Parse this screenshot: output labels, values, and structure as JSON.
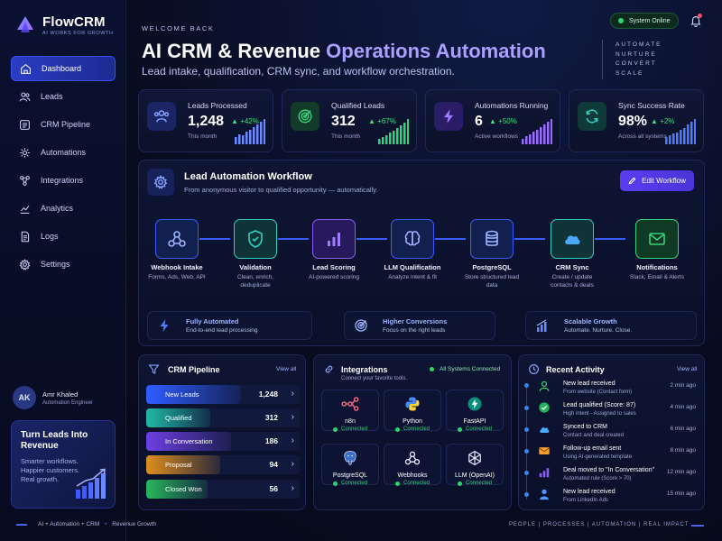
{
  "brand": {
    "name": "FlowCRM",
    "tagline": "AI WORKS FOR GROWTH"
  },
  "nav": [
    {
      "label": "Dashboard",
      "icon": "home-icon",
      "active": true
    },
    {
      "label": "Leads",
      "icon": "users-icon"
    },
    {
      "label": "CRM Pipeline",
      "icon": "list-icon"
    },
    {
      "label": "Automations",
      "icon": "automation-icon"
    },
    {
      "label": "Integrations",
      "icon": "integrations-icon"
    },
    {
      "label": "Analytics",
      "icon": "analytics-icon"
    },
    {
      "label": "Logs",
      "icon": "logs-icon"
    },
    {
      "label": "Settings",
      "icon": "gear-icon"
    }
  ],
  "user": {
    "initials": "AK",
    "name": "Amr Khaled",
    "role": "Automation Engineer"
  },
  "promo": {
    "title": "Turn Leads Into Revenue",
    "text": "Smarter workflows. Happier customers. Real growth."
  },
  "header": {
    "welcome": "WELCOME BACK",
    "title_part1": "AI CRM & Revenue ",
    "title_part2": "Operations Automation",
    "subtitle": "Lead intake, qualification, CRM sync, and workflow orchestration.",
    "status": "System Online",
    "taglines": [
      "AUTOMATE",
      "NURTURE",
      "CONVERT",
      "SCALE"
    ]
  },
  "kpis": [
    {
      "label": "Leads Processed",
      "value": "1,248",
      "delta": "▲ +42%",
      "sub": "This month",
      "icon": "users-icon",
      "color": "#6a8bff"
    },
    {
      "label": "Qualified Leads",
      "value": "312",
      "delta": "▲ +67%",
      "sub": "This month",
      "icon": "target-icon",
      "color": "#34d27a"
    },
    {
      "label": "Automations Running",
      "value": "6",
      "delta": "▲ +50%",
      "sub": "Active workflows",
      "icon": "bolt-icon",
      "color": "#9b6bff"
    },
    {
      "label": "Sync Success Rate",
      "value": "98%",
      "delta": "▲ +2%",
      "sub": "Across all systems",
      "icon": "sync-icon",
      "color": "#2fd0c0"
    }
  ],
  "workflow": {
    "title": "Lead Automation Workflow",
    "subtitle": "From anonymous visitor to qualified opportunity — automatically.",
    "edit_label": "Edit Workflow",
    "steps": [
      {
        "title": "Webhook Intake",
        "desc": "Forms, Ads, Web, API",
        "icon": "webhook-icon",
        "color": "#4d7cff"
      },
      {
        "title": "Validation",
        "desc": "Clean, enrich, deduplicate",
        "icon": "shield-check-icon",
        "color": "#2fd0c0"
      },
      {
        "title": "Lead Scoring",
        "desc": "AI-powered scoring",
        "icon": "bar-chart-icon",
        "color": "#8b5cf6"
      },
      {
        "title": "LLM Qualification",
        "desc": "Analyze intent & fit",
        "icon": "brain-icon",
        "color": "#4d7cff"
      },
      {
        "title": "PostgreSQL",
        "desc": "Store structured lead data",
        "icon": "database-icon",
        "color": "#4d7cff"
      },
      {
        "title": "CRM Sync",
        "desc": "Create / update contacts & deals",
        "icon": "cloud-icon",
        "color": "#2fd0c0"
      },
      {
        "title": "Notifications",
        "desc": "Slack, Email & Alerts",
        "icon": "mail-icon",
        "color": "#34d27a"
      }
    ],
    "features": [
      {
        "title": "Fully Automated",
        "desc": "End-to-end lead processing",
        "icon": "bolt-icon"
      },
      {
        "title": "Higher Conversions",
        "desc": "Focus on the right leads",
        "icon": "target-icon"
      },
      {
        "title": "Scalable Growth",
        "desc": "Automate. Nurture. Close.",
        "icon": "bar-chart-icon"
      }
    ]
  },
  "pipeline": {
    "title": "CRM Pipeline",
    "view_all": "View all",
    "stages": [
      {
        "label": "New Leads",
        "count": "1,248",
        "fill": 0.62,
        "color": "#2f5bff"
      },
      {
        "label": "Qualified",
        "count": "312",
        "fill": 0.42,
        "color": "#1fb5a0"
      },
      {
        "label": "In Conversation",
        "count": "186",
        "fill": 0.55,
        "color": "#6b3ee0"
      },
      {
        "label": "Proposal",
        "count": "94",
        "fill": 0.48,
        "color": "#d98a1f"
      },
      {
        "label": "Closed Won",
        "count": "56",
        "fill": 0.4,
        "color": "#27b25a"
      }
    ]
  },
  "integrations": {
    "title": "Integrations",
    "subtitle": "Connect your favorite tools.",
    "status": "All Systems Connected",
    "items": [
      {
        "name": "n8n",
        "status": "Connected",
        "icon": "n8n-icon"
      },
      {
        "name": "Python",
        "status": "Connected",
        "icon": "python-icon"
      },
      {
        "name": "FastAPI",
        "status": "Connected",
        "icon": "fastapi-icon"
      },
      {
        "name": "PostgreSQL",
        "status": "Connected",
        "icon": "postgresql-icon"
      },
      {
        "name": "Webhooks",
        "status": "Connected",
        "icon": "webhook-icon"
      },
      {
        "name": "LLM (OpenAI)",
        "status": "Connected",
        "icon": "openai-icon"
      }
    ]
  },
  "activity": {
    "title": "Recent Activity",
    "view_all": "View all",
    "items": [
      {
        "title": "New lead received",
        "sub": "From website (Contact form)",
        "time": "2 min ago",
        "icon": "user-icon",
        "color": "#34d27a"
      },
      {
        "title": "Lead qualified (Score: 87)",
        "sub": "High intent - Assigned to sales",
        "time": "4 min ago",
        "icon": "check-circle-icon",
        "color": "#34d27a"
      },
      {
        "title": "Synced to CRM",
        "sub": "Contact and deal created",
        "time": "6 min ago",
        "icon": "cloud-icon",
        "color": "#4d9bff"
      },
      {
        "title": "Follow-up email sent",
        "sub": "Using AI-generated template",
        "time": "8 min ago",
        "icon": "mail-icon",
        "color": "#f59e2c"
      },
      {
        "title": "Deal moved to \"In Conversation\"",
        "sub": "Automated rule (Score > 70)",
        "time": "12 min ago",
        "icon": "bar-chart-icon",
        "color": "#8b5cf6"
      },
      {
        "title": "New lead received",
        "sub": "From LinkedIn Ads",
        "time": "15 min ago",
        "icon": "user-icon",
        "color": "#4d9bff"
      }
    ]
  },
  "footer": {
    "left_1": "AI + Automation + CRM",
    "left_sep": "•",
    "left_2": "Revenue Growth",
    "right": "PEOPLE | PROCESSES | AUTOMATION | REAL IMPACT"
  }
}
